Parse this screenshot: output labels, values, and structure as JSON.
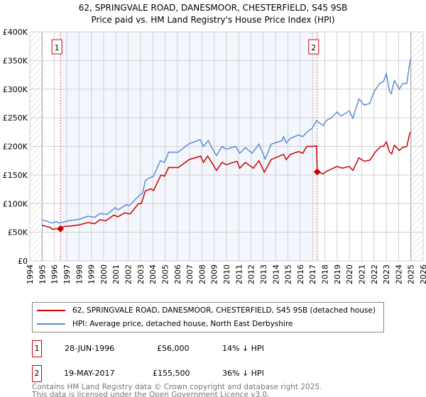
{
  "title_line1": "62, SPRINGVALE ROAD, DANESMOOR, CHESTERFIELD, S45 9SB",
  "title_line2": "Price paid vs. HM Land Registry's House Price Index (HPI)",
  "chart_data": {
    "type": "line",
    "title": "62, SPRINGVALE ROAD, DANESMOOR, CHESTERFIELD, S45 9SB — Price paid vs. HM Land Registry's House Price Index (HPI)",
    "xlim": [
      1994,
      2026
    ],
    "ylim": [
      0,
      400000
    ],
    "x_ticks": [
      "1994",
      "1995",
      "1996",
      "1997",
      "1998",
      "1999",
      "2000",
      "2001",
      "2002",
      "2003",
      "2004",
      "2005",
      "2006",
      "2007",
      "2008",
      "2009",
      "2010",
      "2011",
      "2012",
      "2013",
      "2014",
      "2015",
      "2016",
      "2017",
      "2018",
      "2019",
      "2020",
      "2021",
      "2022",
      "2023",
      "2024",
      "2025",
      "2026"
    ],
    "y_ticks": [
      {
        "v": 0,
        "label": "£0"
      },
      {
        "v": 50000,
        "label": "£50K"
      },
      {
        "v": 100000,
        "label": "£100K"
      },
      {
        "v": 150000,
        "label": "£150K"
      },
      {
        "v": 200000,
        "label": "£200K"
      },
      {
        "v": 250000,
        "label": "£250K"
      },
      {
        "v": 300000,
        "label": "£300K"
      },
      {
        "v": 350000,
        "label": "£350K"
      },
      {
        "v": 400000,
        "label": "£400K"
      }
    ],
    "grid": true,
    "data_range": [
      1995,
      2025
    ],
    "shaded_range": [
      1996.49,
      2017.38
    ],
    "series": [
      {
        "name": "62, SPRINGVALE ROAD, DANESMOOR, CHESTERFIELD, S45 9SB (detached house)",
        "color": "#cc0000",
        "points": [
          [
            1995.0,
            62
          ],
          [
            1995.71,
            58
          ],
          [
            1995.82,
            55
          ],
          [
            1996.38,
            57
          ],
          [
            1996.49,
            56
          ],
          [
            1996.71,
            60
          ],
          [
            1997.38,
            61
          ],
          [
            1998.05,
            63
          ],
          [
            1998.72,
            67
          ],
          [
            1999.28,
            65
          ],
          [
            1999.72,
            72
          ],
          [
            2000.17,
            70
          ],
          [
            2000.84,
            80
          ],
          [
            2001.17,
            77
          ],
          [
            2001.73,
            84
          ],
          [
            2002.17,
            82
          ],
          [
            2002.84,
            100
          ],
          [
            2003.06,
            100
          ],
          [
            2003.4,
            122
          ],
          [
            2003.84,
            126
          ],
          [
            2004.06,
            123
          ],
          [
            2004.67,
            150
          ],
          [
            2004.96,
            148
          ],
          [
            2005.29,
            163
          ],
          [
            2006.07,
            163
          ],
          [
            2006.96,
            177
          ],
          [
            2007.9,
            183
          ],
          [
            2008.12,
            172
          ],
          [
            2008.47,
            183
          ],
          [
            2008.85,
            170
          ],
          [
            2009.19,
            158
          ],
          [
            2009.63,
            172
          ],
          [
            2009.97,
            168
          ],
          [
            2010.86,
            174
          ],
          [
            2011.08,
            162
          ],
          [
            2011.53,
            172
          ],
          [
            2012.19,
            162
          ],
          [
            2012.64,
            175
          ],
          [
            2013.08,
            155
          ],
          [
            2013.64,
            177
          ],
          [
            2014.64,
            186
          ],
          [
            2014.87,
            177
          ],
          [
            2015.2,
            186
          ],
          [
            2015.87,
            191
          ],
          [
            2016.2,
            188
          ],
          [
            2016.54,
            200
          ],
          [
            2016.98,
            200
          ],
          [
            2017.33,
            201
          ],
          [
            2017.38,
            155.5
          ],
          [
            2017.87,
            152
          ],
          [
            2018.1,
            156
          ],
          [
            2018.99,
            165
          ],
          [
            2019.43,
            162
          ],
          [
            2019.99,
            165
          ],
          [
            2020.28,
            158
          ],
          [
            2020.77,
            180
          ],
          [
            2021.21,
            174
          ],
          [
            2021.66,
            176
          ],
          [
            2022.1,
            190
          ],
          [
            2022.55,
            200
          ],
          [
            2022.77,
            200
          ],
          [
            2023.0,
            208
          ],
          [
            2023.26,
            190
          ],
          [
            2023.44,
            187
          ],
          [
            2023.66,
            202
          ],
          [
            2024.06,
            193
          ],
          [
            2024.33,
            198
          ],
          [
            2024.67,
            200
          ],
          [
            2024.9,
            222
          ],
          [
            2025.0,
            225
          ]
        ]
      },
      {
        "name": "HPI: Average price, detached house, North East Derbyshire",
        "color": "#5b8fd4",
        "points": [
          [
            1995.0,
            72
          ],
          [
            1995.82,
            66
          ],
          [
            1996.16,
            69
          ],
          [
            1996.38,
            66
          ],
          [
            1997.16,
            70
          ],
          [
            1998.05,
            73
          ],
          [
            1998.72,
            78
          ],
          [
            1999.28,
            76
          ],
          [
            1999.72,
            83
          ],
          [
            2000.28,
            81
          ],
          [
            2000.95,
            93
          ],
          [
            2001.17,
            89
          ],
          [
            2001.84,
            98
          ],
          [
            2002.06,
            96
          ],
          [
            2002.95,
            115
          ],
          [
            2003.17,
            118
          ],
          [
            2003.4,
            140
          ],
          [
            2003.73,
            145
          ],
          [
            2004.06,
            148
          ],
          [
            2004.62,
            175
          ],
          [
            2004.96,
            172
          ],
          [
            2005.29,
            190
          ],
          [
            2006.07,
            190
          ],
          [
            2006.96,
            205
          ],
          [
            2007.41,
            208
          ],
          [
            2007.85,
            212
          ],
          [
            2008.12,
            200
          ],
          [
            2008.52,
            210
          ],
          [
            2008.85,
            196
          ],
          [
            2009.19,
            184
          ],
          [
            2009.63,
            200
          ],
          [
            2009.97,
            195
          ],
          [
            2010.75,
            200
          ],
          [
            2011.08,
            188
          ],
          [
            2011.53,
            198
          ],
          [
            2012.08,
            188
          ],
          [
            2012.64,
            204
          ],
          [
            2013.15,
            178
          ],
          [
            2013.64,
            204
          ],
          [
            2014.53,
            210
          ],
          [
            2014.64,
            217
          ],
          [
            2014.87,
            206
          ],
          [
            2015.2,
            214
          ],
          [
            2015.87,
            220
          ],
          [
            2016.2,
            217
          ],
          [
            2016.54,
            225
          ],
          [
            2016.98,
            232
          ],
          [
            2017.32,
            245
          ],
          [
            2017.87,
            236
          ],
          [
            2018.1,
            245
          ],
          [
            2018.54,
            250
          ],
          [
            2018.99,
            260
          ],
          [
            2019.32,
            253
          ],
          [
            2019.99,
            262
          ],
          [
            2020.28,
            249
          ],
          [
            2020.77,
            283
          ],
          [
            2021.21,
            272
          ],
          [
            2021.66,
            275
          ],
          [
            2021.99,
            295
          ],
          [
            2022.44,
            310
          ],
          [
            2022.77,
            313
          ],
          [
            2023.0,
            327
          ],
          [
            2023.26,
            296
          ],
          [
            2023.4,
            292
          ],
          [
            2023.66,
            315
          ],
          [
            2024.06,
            300
          ],
          [
            2024.33,
            310
          ],
          [
            2024.67,
            310
          ],
          [
            2024.9,
            345
          ],
          [
            2025.0,
            354
          ]
        ]
      }
    ],
    "value_unit": "thousands GBP",
    "annotations": [
      {
        "label": "1",
        "x": 1996.49,
        "y": 56
      },
      {
        "label": "2",
        "x": 2017.38,
        "y": 155.5
      }
    ],
    "legend": "bottom"
  },
  "legend": {
    "items": [
      {
        "label": "62, SPRINGVALE ROAD, DANESMOOR, CHESTERFIELD, S45 9SB (detached house)",
        "color": "#cc0000"
      },
      {
        "label": "HPI: Average price, detached house, North East Derbyshire",
        "color": "#5b8fd4"
      }
    ]
  },
  "sales": [
    {
      "num": "1",
      "date": "28-JUN-1996",
      "price": "£56,000",
      "diff": "14% ↓ HPI"
    },
    {
      "num": "2",
      "date": "19-MAY-2017",
      "price": "£155,500",
      "diff": "36% ↓ HPI"
    }
  ],
  "footer": {
    "line1": "Contains HM Land Registry data © Crown copyright and database right 2025.",
    "line2": "This data is licensed under the Open Government Licence v3.0."
  }
}
